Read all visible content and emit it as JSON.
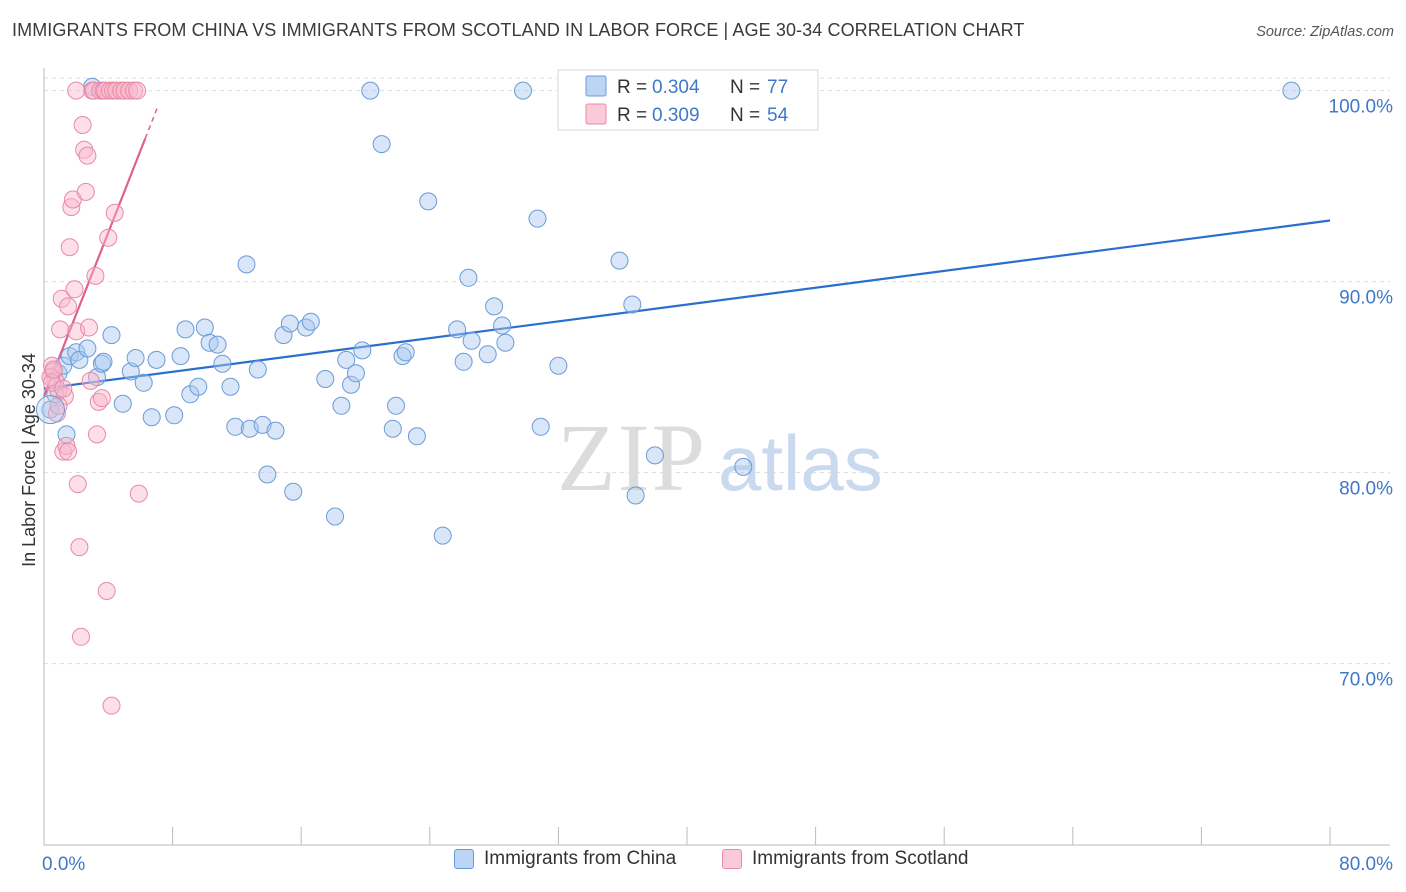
{
  "header": {
    "title": "IMMIGRANTS FROM CHINA VS IMMIGRANTS FROM SCOTLAND IN LABOR FORCE | AGE 30-34 CORRELATION CHART",
    "source": "Source: ZipAtlas.com"
  },
  "watermark": {
    "zip": "ZIP",
    "atlas": "atlas"
  },
  "colors": {
    "china_fill": "#a8c8f0",
    "china_stroke": "#6a9bd8",
    "china_line": "#2a6fce",
    "scotland_fill": "#f8b8cc",
    "scotland_stroke": "#e98aa8",
    "scotland_line": "#e0608f",
    "axis_text": "#3f78c8",
    "grid": "#dddddd"
  },
  "legend_top": {
    "rows": [
      {
        "r_label": "R = ",
        "r_value": "0.304",
        "n_label": "N = ",
        "n_value": "77"
      },
      {
        "r_label": "R = ",
        "r_value": "0.309",
        "n_label": "N = ",
        "n_value": "54"
      }
    ]
  },
  "legend_bottom": {
    "items": [
      "Immigrants from China",
      "Immigrants from Scotland"
    ]
  },
  "chart_data": {
    "type": "scatter",
    "title": "IMMIGRANTS FROM CHINA VS IMMIGRANTS FROM SCOTLAND IN LABOR FORCE | AGE 30-34 CORRELATION CHART",
    "xlabel": "",
    "ylabel": "In Labor Force | Age 30-34",
    "xlim": [
      0,
      80
    ],
    "ylim": [
      60.5,
      101.5
    ],
    "x_tick_labels": [
      {
        "value": 0,
        "label": "0.0%"
      },
      {
        "value": 80,
        "label": "80.0%"
      }
    ],
    "x_minor_ticks": [
      8,
      16,
      24,
      32,
      40,
      48,
      56,
      64,
      72,
      80
    ],
    "y_ticks": [
      {
        "value": 70,
        "label": "70.0%"
      },
      {
        "value": 80,
        "label": "80.0%"
      },
      {
        "value": 90,
        "label": "90.0%"
      },
      {
        "value": 100,
        "label": "100.0%"
      }
    ],
    "grid": true,
    "legend_position": "top-center",
    "series": [
      {
        "name": "Immigrants from China",
        "r": 0.304,
        "n": 77,
        "trend": {
          "x": [
            0,
            80
          ],
          "y": [
            84.4,
            93.2
          ]
        },
        "points": [
          [
            0.4,
            83.3
          ],
          [
            0.9,
            85.2
          ],
          [
            1.2,
            85.6
          ],
          [
            1.6,
            86.1
          ],
          [
            2.0,
            86.3
          ],
          [
            2.2,
            85.9
          ],
          [
            2.7,
            86.5
          ],
          [
            3.3,
            85.0
          ],
          [
            3.6,
            85.7
          ],
          [
            3.7,
            85.8
          ],
          [
            4.2,
            87.2
          ],
          [
            4.9,
            83.6
          ],
          [
            5.4,
            85.3
          ],
          [
            5.7,
            86.0
          ],
          [
            6.2,
            84.7
          ],
          [
            6.7,
            82.9
          ],
          [
            7.0,
            85.9
          ],
          [
            8.1,
            83.0
          ],
          [
            8.5,
            86.1
          ],
          [
            8.8,
            87.5
          ],
          [
            9.1,
            84.1
          ],
          [
            9.6,
            84.5
          ],
          [
            10.0,
            87.6
          ],
          [
            10.3,
            86.8
          ],
          [
            10.8,
            86.7
          ],
          [
            11.1,
            85.7
          ],
          [
            11.6,
            84.5
          ],
          [
            11.9,
            82.4
          ],
          [
            12.6,
            90.9
          ],
          [
            12.8,
            82.3
          ],
          [
            13.3,
            85.4
          ],
          [
            13.6,
            82.5
          ],
          [
            13.9,
            79.9
          ],
          [
            14.4,
            82.2
          ],
          [
            14.9,
            87.2
          ],
          [
            15.3,
            87.8
          ],
          [
            15.5,
            79.0
          ],
          [
            16.3,
            87.6
          ],
          [
            16.6,
            87.9
          ],
          [
            17.5,
            84.9
          ],
          [
            18.1,
            77.7
          ],
          [
            18.5,
            83.5
          ],
          [
            18.8,
            85.9
          ],
          [
            19.1,
            84.6
          ],
          [
            19.4,
            85.2
          ],
          [
            19.8,
            86.4
          ],
          [
            20.3,
            100.0
          ],
          [
            21.0,
            97.2
          ],
          [
            21.7,
            82.3
          ],
          [
            21.9,
            83.5
          ],
          [
            22.3,
            86.1
          ],
          [
            22.5,
            86.3
          ],
          [
            23.2,
            81.9
          ],
          [
            23.9,
            94.2
          ],
          [
            24.8,
            76.7
          ],
          [
            25.7,
            87.5
          ],
          [
            26.1,
            85.8
          ],
          [
            26.4,
            90.2
          ],
          [
            26.6,
            86.9
          ],
          [
            27.6,
            86.2
          ],
          [
            28.0,
            88.7
          ],
          [
            28.5,
            87.7
          ],
          [
            28.7,
            86.8
          ],
          [
            29.8,
            100.0
          ],
          [
            30.7,
            93.3
          ],
          [
            30.9,
            82.4
          ],
          [
            32.0,
            85.6
          ],
          [
            33.0,
            100.0
          ],
          [
            35.8,
            91.1
          ],
          [
            36.6,
            88.8
          ],
          [
            36.8,
            78.8
          ],
          [
            38.0,
            80.9
          ],
          [
            43.5,
            80.3
          ],
          [
            77.6,
            100.0
          ],
          [
            3.0,
            100.2
          ],
          [
            0.7,
            84.1
          ],
          [
            1.4,
            82.0
          ]
        ]
      },
      {
        "name": "Immigrants from Scotland",
        "r": 0.309,
        "n": 54,
        "trend": {
          "x": [
            0.0,
            6.3
          ],
          "y": [
            84.0,
            97.5
          ]
        },
        "points": [
          [
            0.5,
            85.6
          ],
          [
            0.6,
            85.3
          ],
          [
            0.7,
            84.8
          ],
          [
            0.8,
            83.1
          ],
          [
            0.9,
            84.3
          ],
          [
            1.0,
            87.5
          ],
          [
            1.1,
            89.1
          ],
          [
            1.2,
            81.1
          ],
          [
            1.3,
            84.0
          ],
          [
            1.4,
            81.4
          ],
          [
            1.5,
            88.7
          ],
          [
            1.6,
            91.8
          ],
          [
            1.7,
            93.9
          ],
          [
            1.8,
            94.3
          ],
          [
            1.9,
            89.6
          ],
          [
            2.0,
            87.4
          ],
          [
            2.1,
            79.4
          ],
          [
            2.2,
            76.1
          ],
          [
            2.3,
            71.4
          ],
          [
            2.4,
            98.2
          ],
          [
            2.5,
            96.9
          ],
          [
            2.6,
            94.7
          ],
          [
            2.7,
            96.6
          ],
          [
            2.8,
            87.6
          ],
          [
            2.9,
            84.8
          ],
          [
            3.0,
            100.0
          ],
          [
            3.1,
            100.0
          ],
          [
            3.2,
            90.3
          ],
          [
            3.3,
            82.0
          ],
          [
            3.4,
            83.7
          ],
          [
            3.5,
            100.0
          ],
          [
            3.6,
            83.9
          ],
          [
            3.7,
            100.0
          ],
          [
            3.8,
            100.0
          ],
          [
            3.9,
            73.8
          ],
          [
            4.0,
            92.3
          ],
          [
            4.1,
            100.0
          ],
          [
            4.2,
            67.8
          ],
          [
            4.3,
            100.0
          ],
          [
            4.4,
            93.6
          ],
          [
            4.5,
            100.0
          ],
          [
            4.8,
            100.0
          ],
          [
            5.0,
            100.0
          ],
          [
            5.3,
            100.0
          ],
          [
            5.6,
            100.0
          ],
          [
            5.8,
            100.0
          ],
          [
            5.9,
            78.9
          ],
          [
            0.4,
            85.0
          ],
          [
            0.5,
            84.7
          ],
          [
            0.6,
            85.4
          ],
          [
            0.9,
            83.5
          ],
          [
            1.2,
            84.4
          ],
          [
            1.5,
            81.1
          ],
          [
            2.0,
            100.0
          ]
        ]
      }
    ]
  }
}
